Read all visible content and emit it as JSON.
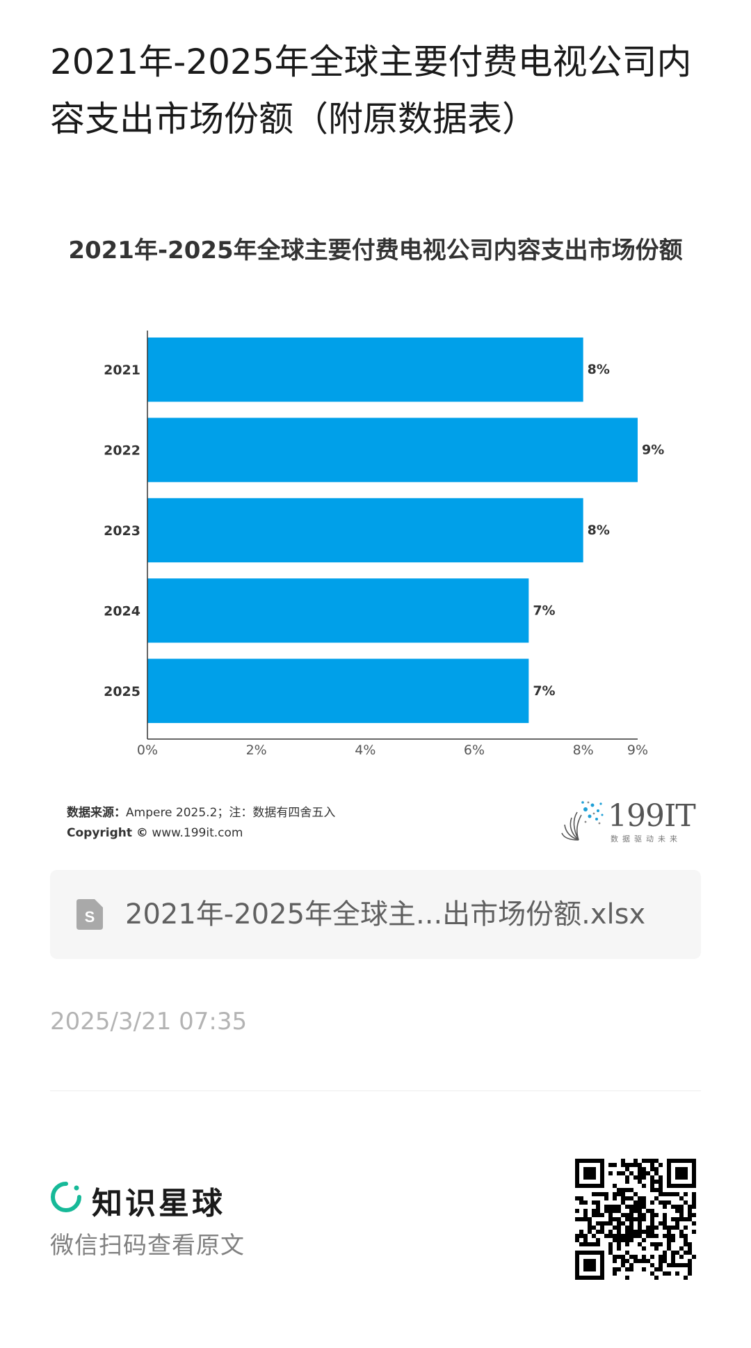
{
  "page": {
    "title": "2021年-2025年全球主要付费电视公司内容支出市场份额（附原数据表）"
  },
  "chart_data": {
    "type": "bar",
    "orientation": "horizontal",
    "title": "2021年-2025年全球主要付费电视公司内容支出市场份额",
    "categories": [
      "2021",
      "2022",
      "2023",
      "2024",
      "2025"
    ],
    "values": [
      8,
      9,
      8,
      7,
      7
    ],
    "value_labels": [
      "8%",
      "9%",
      "8%",
      "7%",
      "7%"
    ],
    "xticks": [
      "0%",
      "2%",
      "4%",
      "6%",
      "8%",
      "9%"
    ],
    "xtick_values": [
      0,
      2,
      4,
      6,
      8,
      9
    ],
    "xlim": [
      0,
      9
    ],
    "xlabel": "",
    "ylabel": "",
    "grid": false,
    "legend": "none",
    "bar_color": "#00A0E9"
  },
  "source": {
    "label": "数据来源：",
    "text": "Ampere  2025.2；注：数据有四舍五入",
    "copyright_label": "Copyright ©",
    "copyright_text": " www.199it.com"
  },
  "logo": {
    "name": "199IT",
    "tagline": "数据驱动未来"
  },
  "attachment": {
    "file_name": "2021年-2025年全球主...出市场份额.xlsx",
    "icon": "spreadsheet-file-icon"
  },
  "post": {
    "timestamp": "2025/3/21 07:35"
  },
  "footer": {
    "brand": "知识星球",
    "prompt": "微信扫码查看原文",
    "brand_color": "#16B998"
  }
}
